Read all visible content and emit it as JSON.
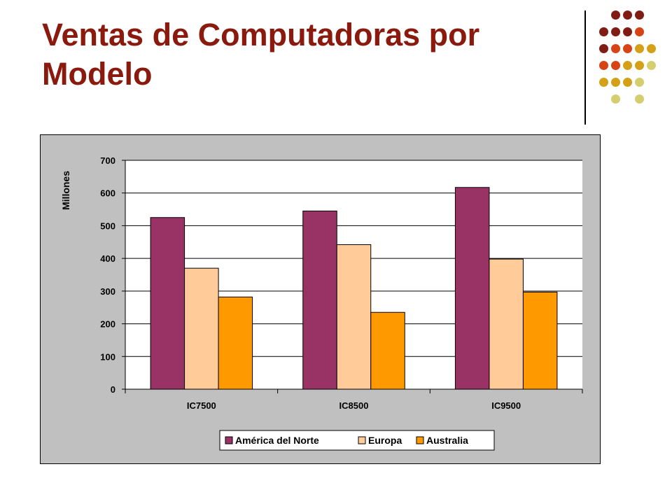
{
  "slide": {
    "title": "Ventas de Computadoras por Modelo"
  },
  "decoration": {
    "dot_colors": {
      "dark_red": "#7F1D15",
      "orange_red": "#D84315",
      "gold": "#D4A017",
      "pale_olive": "#D4CE6E"
    }
  },
  "chart_data": {
    "type": "bar",
    "title": "",
    "xlabel": "",
    "ylabel": "Millones",
    "categories": [
      "IC7500",
      "IC8500",
      "IC9500"
    ],
    "series": [
      {
        "name": "América del Norte",
        "values": [
          525,
          545,
          617
        ],
        "color": "#993366"
      },
      {
        "name": "Europa",
        "values": [
          370,
          442,
          398
        ],
        "color": "#FFCC99"
      },
      {
        "name": "Australia",
        "values": [
          282,
          235,
          297
        ],
        "color": "#FF9900"
      }
    ],
    "ylim": [
      0,
      700
    ],
    "yticks": [
      "0",
      "100",
      "200",
      "300",
      "400",
      "500",
      "600",
      "700"
    ],
    "grid": true,
    "legend_position": "bottom",
    "background_color": "#C0C0C0",
    "plot_background": "#FFFFFF"
  }
}
